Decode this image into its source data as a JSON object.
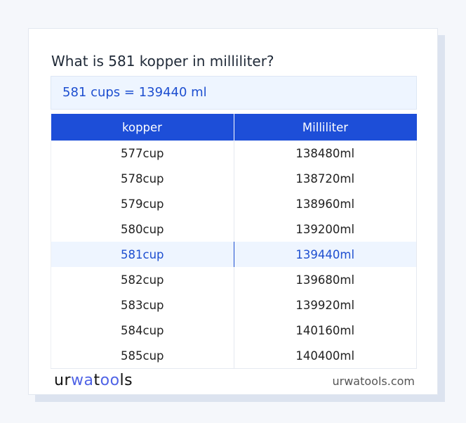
{
  "title": "What is 581 kopper in milliliter?",
  "result": "581 cups = 139440 ml",
  "table": {
    "headers": [
      "kopper",
      "Milliliter"
    ],
    "rows": [
      [
        "577cup",
        "138480ml"
      ],
      [
        "578cup",
        "138720ml"
      ],
      [
        "579cup",
        "138960ml"
      ],
      [
        "580cup",
        "139200ml"
      ],
      [
        "581cup",
        "139440ml"
      ],
      [
        "582cup",
        "139680ml"
      ],
      [
        "583cup",
        "139920ml"
      ],
      [
        "584cup",
        "140160ml"
      ],
      [
        "585cup",
        "140400ml"
      ]
    ],
    "highlight_index": 4
  },
  "footer": {
    "logo": "urwatools",
    "site": "urwatools.com"
  },
  "colors": {
    "accent": "#1d4ed8",
    "highlight_bg": "#eef5ff"
  }
}
